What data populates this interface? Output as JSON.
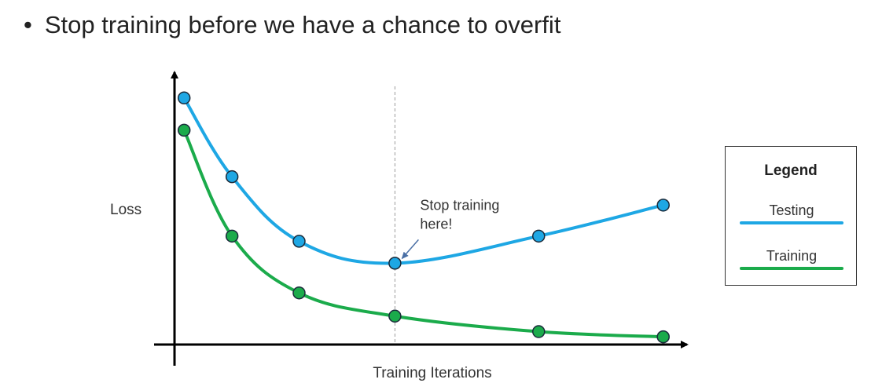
{
  "slide": {
    "bullet": "Stop training before we have a chance to overfit"
  },
  "chart_data": {
    "type": "line",
    "xlabel": "Training Iterations",
    "ylabel": "Loss",
    "xlim": [
      0,
      10.5
    ],
    "ylim": [
      0,
      10
    ],
    "grid": false,
    "legend_position": "right",
    "legend_title": "Legend",
    "series": [
      {
        "name": "Testing",
        "color": "#1ea7e4",
        "x": [
          0.2,
          1.2,
          2.6,
          4.6,
          7.6,
          10.2
        ],
        "y": [
          9.55,
          6.5,
          4.0,
          3.15,
          4.2,
          5.4
        ]
      },
      {
        "name": "Training",
        "color": "#1bab4b",
        "x": [
          0.2,
          1.2,
          2.6,
          4.6,
          7.6,
          10.2
        ],
        "y": [
          8.3,
          4.2,
          2.0,
          1.1,
          0.5,
          0.3
        ]
      }
    ],
    "annotations": [
      {
        "text": "Stop training here!",
        "lines": [
          "Stop training",
          "here!"
        ],
        "x": 4.6,
        "arrow_target_series": "Testing"
      }
    ],
    "vline_x": 4.6
  }
}
